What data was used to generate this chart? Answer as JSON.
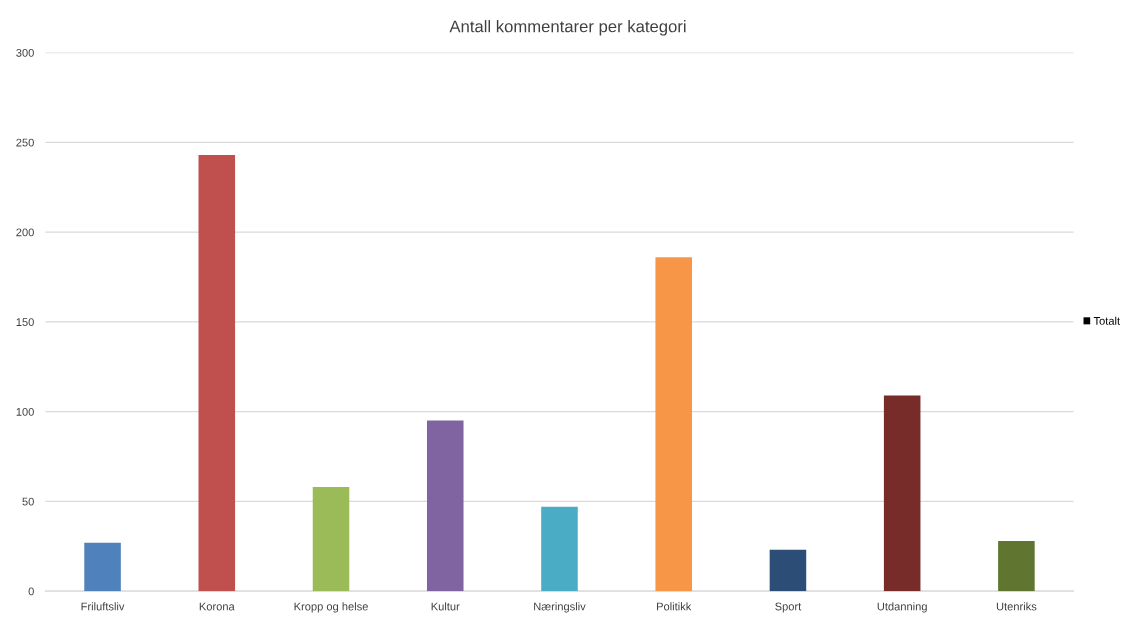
{
  "chart_data": {
    "type": "bar",
    "title": "Antall kommentarer per kategori",
    "categories": [
      "Friluftsliv",
      "Korona",
      "Kropp og helse",
      "Kultur",
      "Næringsliv",
      "Politikk",
      "Sport",
      "Utdanning",
      "Utenriks"
    ],
    "series": [
      {
        "name": "Totalt",
        "color": "#000000",
        "colors": [
          "#4f81bd",
          "#c0504d",
          "#9bbb59",
          "#8064a2",
          "#4bacc6",
          "#f79646",
          "#2c4d75",
          "#772c2a",
          "#5f7530"
        ],
        "values": [
          27,
          243,
          58,
          95,
          47,
          186,
          23,
          109,
          28
        ]
      }
    ],
    "ylim": [
      0,
      300
    ],
    "yticks": [
      0,
      50,
      100,
      150,
      200,
      250,
      300
    ],
    "grid": "y",
    "legend": "right"
  }
}
